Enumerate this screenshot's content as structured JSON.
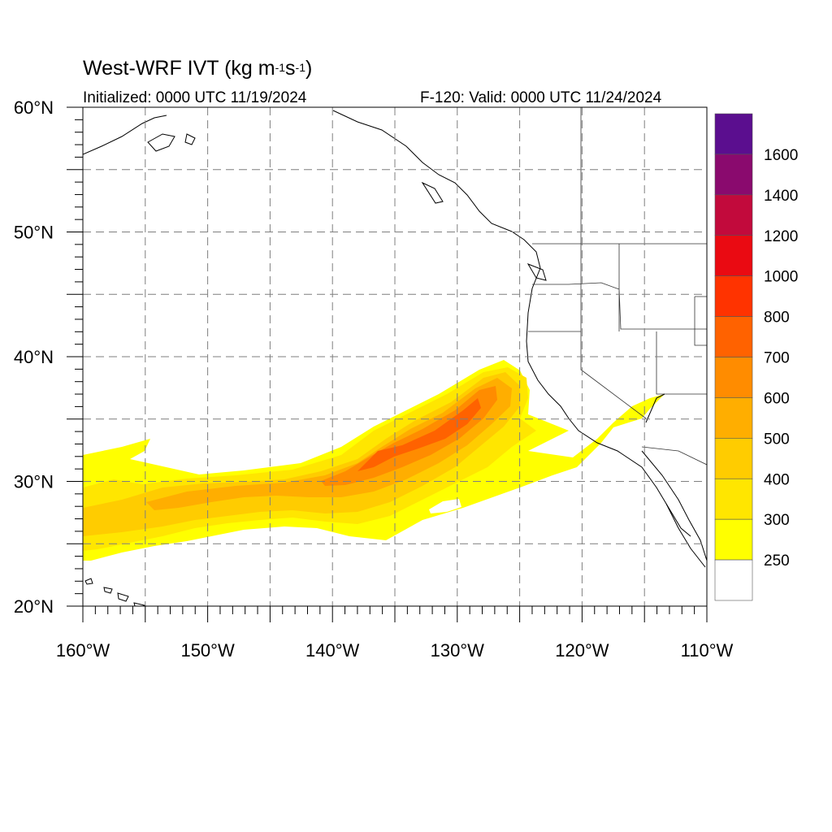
{
  "map": {
    "title_prefix": "West-WRF IVT (kg m",
    "title_exp1": "-1",
    "title_mid": "s",
    "title_exp2": "-1",
    "title_suffix": ")",
    "initialized": "Initialized: 0000 UTC 11/19/2024",
    "valid": "F-120: Valid: 0000 UTC 11/24/2024",
    "lon_range": [
      -160,
      -110
    ],
    "lat_range": [
      20,
      60
    ],
    "lon_labels": [
      "160°W",
      "150°W",
      "140°W",
      "130°W",
      "120°W",
      "110°W"
    ],
    "lat_labels": [
      "60°N",
      "50°N",
      "40°N",
      "30°N",
      "20°N"
    ],
    "gridlines": "dashed every 5°",
    "features": [
      "coastlines",
      "US state borders",
      "Canada–US border"
    ]
  },
  "colorbar": {
    "labels": [
      "1600",
      "1400",
      "1200",
      "1000",
      "800",
      "700",
      "600",
      "500",
      "400",
      "300",
      "250"
    ],
    "colors": [
      "#5b0e8f",
      "#8a0a6e",
      "#c20a3c",
      "#ea0a12",
      "#ff3300",
      "#ff6200",
      "#ff8c00",
      "#ffae00",
      "#ffcc00",
      "#ffe600",
      "#ffff00",
      "#ffffff"
    ]
  },
  "field": {
    "variable": "Integrated Vapor Transport",
    "feature": "atmospheric river extending from ~160°W 27°N northeast to ~126°W 38°N, with a branch reaching the southern California coast near 34°N",
    "max_ivt_class": "700",
    "colors": {
      "c250": "#ffff00",
      "c300": "#ffe600",
      "c400": "#ffcc00",
      "c500": "#ffae00",
      "c600": "#ff8c00",
      "c700": "#ff6200"
    }
  }
}
